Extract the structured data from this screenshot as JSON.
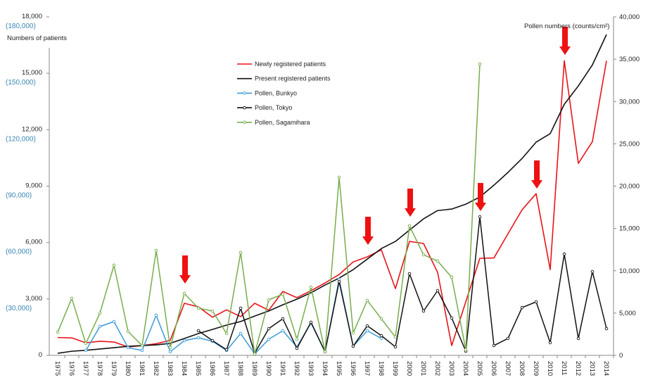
{
  "chart_data": {
    "type": "line",
    "title": "",
    "ylabel_left": "Numbers of patients",
    "ylabel_right": "Pollen numbers (counts/cm²)",
    "xlabel": "",
    "ylim_left": [
      0,
      18000
    ],
    "ylim_right": [
      0,
      40000
    ],
    "left_ticks": [
      "0",
      "3,000",
      "6,000",
      "9,000",
      "12,000",
      "15,000",
      "18,000"
    ],
    "left_ticks_alt": [
      "",
      "(30,000)",
      "(60,000)",
      "(90,000)",
      "(120,000)",
      "(150,000)",
      "(180,000)"
    ],
    "right_ticks": [
      "0",
      "5,000",
      "10,000",
      "15,000",
      "20,000",
      "25,000",
      "30,000",
      "35,000",
      "40,000"
    ],
    "x": [
      1975,
      1976,
      1977,
      1978,
      1979,
      1980,
      1981,
      1982,
      1983,
      1984,
      1985,
      1986,
      1987,
      1988,
      1989,
      1990,
      1991,
      1992,
      1993,
      1994,
      1995,
      1996,
      1997,
      1998,
      1999,
      2000,
      2001,
      2002,
      2003,
      2004,
      2005,
      2006,
      2007,
      2008,
      2009,
      2010,
      2011,
      2012,
      2013,
      2014
    ],
    "legend_position": "top-center",
    "series": [
      {
        "name": "Newly registered patients",
        "axis": "left",
        "color": "#e8141b",
        "marker": false,
        "values": [
          950,
          930,
          670,
          750,
          710,
          450,
          520,
          620,
          800,
          2770,
          2580,
          2030,
          2420,
          2060,
          2770,
          2400,
          3400,
          3070,
          3440,
          3850,
          4300,
          4970,
          5240,
          5610,
          3550,
          6060,
          5950,
          4410,
          520,
          2850,
          5160,
          5180,
          6470,
          7740,
          8600,
          4560,
          15670,
          10210,
          11370,
          15670
        ]
      },
      {
        "name": "Present registered patients",
        "axis": "left",
        "color": "#111111",
        "marker": false,
        "values": [
          110,
          220,
          270,
          340,
          410,
          480,
          520,
          560,
          640,
          900,
          1160,
          1380,
          1610,
          1800,
          2090,
          2360,
          2690,
          2990,
          3330,
          3740,
          4110,
          4560,
          5120,
          5680,
          6060,
          6660,
          7260,
          7700,
          7780,
          8040,
          8420,
          9050,
          9730,
          10470,
          11340,
          11790,
          13350,
          14330,
          15450,
          17060
        ]
      },
      {
        "name": "Pollen, Bunkyo",
        "axis": "right",
        "color": "#3a9ad9",
        "marker": true,
        "values": [
          null,
          null,
          580,
          3410,
          3990,
          910,
          580,
          4740,
          420,
          1750,
          2080,
          1660,
          580,
          2580,
          170,
          1910,
          2910,
          1000,
          3830,
          420,
          8980,
          1080,
          2910,
          2000,
          null,
          null,
          null,
          null,
          null,
          null,
          null,
          null,
          null,
          null,
          null,
          null,
          null,
          null,
          null,
          null
        ]
      },
      {
        "name": "Pollen, Tokyo",
        "axis": "right",
        "color": "#111111",
        "marker": true,
        "values": [
          null,
          null,
          null,
          null,
          null,
          null,
          null,
          null,
          null,
          null,
          2910,
          1750,
          670,
          5570,
          250,
          3160,
          4320,
          830,
          3910,
          420,
          8730,
          1080,
          3490,
          2330,
          1000,
          9650,
          5240,
          7650,
          4410,
          500,
          16380,
          1160,
          2000,
          5650,
          6320,
          1500,
          11970,
          2000,
          9900,
          3160
        ]
      },
      {
        "name": "Pollen, Sagamihara",
        "axis": "right",
        "color": "#77ad4c",
        "marker": true,
        "values": [
          2740,
          6740,
          1410,
          4990,
          10650,
          2830,
          1160,
          12390,
          910,
          7320,
          5570,
          5240,
          2580,
          12140,
          170,
          6570,
          7230,
          1910,
          8070,
          420,
          21040,
          2660,
          6490,
          4320,
          2160,
          15300,
          11890,
          11140,
          9230,
          670,
          34430,
          null,
          null,
          null,
          null,
          null,
          null,
          null,
          null,
          null
        ]
      }
    ],
    "annotations": {
      "arrow_years": [
        1984,
        1997,
        2000,
        2005,
        2009,
        2011
      ],
      "arrow_color": "#ee1111"
    }
  }
}
